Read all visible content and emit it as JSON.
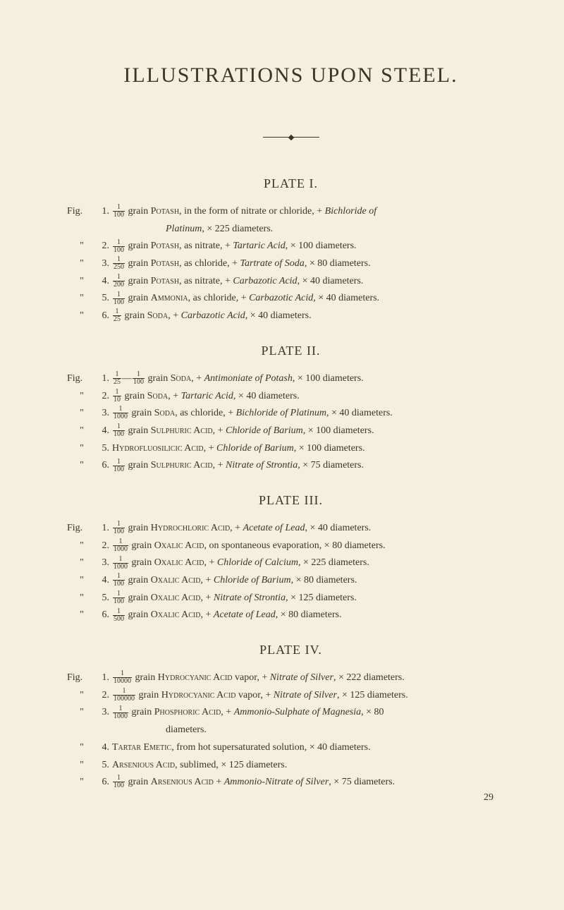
{
  "colors": {
    "background": "#f5efde",
    "text": "#3a3528"
  },
  "typography": {
    "title_fontsize": 30,
    "heading_fontsize": 18,
    "body_fontsize": 14,
    "font_family": "Times New Roman"
  },
  "title": "ILLUSTRATIONS UPON STEEL.",
  "plates": [
    {
      "heading": "PLATE I.",
      "entries": [
        {
          "label": "Fig.",
          "num": "1.",
          "frac_num": "1",
          "frac_den": "100",
          "body_a": "grain ",
          "sc": "Potash",
          "body_b": ", in the form of nitrate or chloride, + <i>Bichloride of</i>",
          "cont": "<i>Platinum</i>, × 225 diameters."
        },
        {
          "label": "\"",
          "num": "2.",
          "frac_num": "1",
          "frac_den": "100",
          "body_a": "grain ",
          "sc": "Potash",
          "body_b": ", as nitrate, + <i>Tartaric Acid</i>, × 100 diameters."
        },
        {
          "label": "\"",
          "num": "3.",
          "frac_num": "1",
          "frac_den": "250",
          "body_a": "grain ",
          "sc": "Potash",
          "body_b": ", as chloride, + <i>Tartrate of Soda</i>, × 80 diameters."
        },
        {
          "label": "\"",
          "num": "4.",
          "frac_num": "1",
          "frac_den": "200",
          "body_a": "grain ",
          "sc": "Potash",
          "body_b": ", as nitrate, + <i>Carbazotic Acid</i>, × 40 diameters."
        },
        {
          "label": "\"",
          "num": "5.",
          "frac_num": "1",
          "frac_den": "100",
          "body_a": "grain ",
          "sc": "Ammonia",
          "body_b": ", as chloride, + <i>Carbazotic Acid</i>, × 40 diameters."
        },
        {
          "label": "\"",
          "num": "6.",
          "frac_num": "1",
          "frac_den": "25",
          "body_a": "grain ",
          "sc": "Soda",
          "body_b": ", + <i>Carbazotic Acid</i>, × 40 diameters."
        }
      ]
    },
    {
      "heading": "PLATE II.",
      "entries": [
        {
          "label": "Fig.",
          "num": "1.",
          "frac_num": "1",
          "frac_den": "25",
          "dash": "—",
          "frac2_num": "1",
          "frac2_den": "100",
          "body_a": "grain ",
          "sc": "Soda",
          "body_b": ", + <i>Antimoniate of Potash</i>, × 100 diameters."
        },
        {
          "label": "\"",
          "num": "2.",
          "frac_num": "1",
          "frac_den": "10",
          "body_a": "grain ",
          "sc": "Soda",
          "body_b": ", + <i>Tartaric Acid</i>, × 40 diameters."
        },
        {
          "label": "\"",
          "num": "3.",
          "frac_num": "1",
          "frac_den": "1000",
          "body_a": "grain ",
          "sc": "Soda",
          "body_b": ", as chloride, + <i>Bichloride of Platinum</i>, × 40 diameters."
        },
        {
          "label": "\"",
          "num": "4.",
          "frac_num": "1",
          "frac_den": "100",
          "body_a": "grain ",
          "sc": "Sulphuric Acid",
          "body_b": ", + <i>Chloride of Barium</i>, × 100 diameters."
        },
        {
          "label": "\"",
          "num": "5.",
          "body_pre": "",
          "sc": "Hydrofluosilicic Acid",
          "body_b": ", + <i>Chloride of Barium</i>, × 100 diameters."
        },
        {
          "label": "\"",
          "num": "6.",
          "frac_num": "1",
          "frac_den": "100",
          "body_a": "grain ",
          "sc": "Sulphuric Acid",
          "body_b": ", + <i>Nitrate of Strontia</i>, × 75 diameters."
        }
      ]
    },
    {
      "heading": "PLATE III.",
      "entries": [
        {
          "label": "Fig.",
          "num": "1.",
          "frac_num": "1",
          "frac_den": "100",
          "body_a": "grain ",
          "sc": "Hydrochloric Acid",
          "body_b": ", + <i>Acetate of Lead</i>, × 40 diameters."
        },
        {
          "label": "\"",
          "num": "2.",
          "frac_num": "1",
          "frac_den": "1000",
          "body_a": "grain ",
          "sc": "Oxalic Acid",
          "body_b": ", on spontaneous evaporation, × 80 diameters."
        },
        {
          "label": "\"",
          "num": "3.",
          "frac_num": "1",
          "frac_den": "1000",
          "body_a": "grain ",
          "sc": "Oxalic Acid",
          "body_b": ", + <i>Chloride of Calcium</i>, × 225 diameters."
        },
        {
          "label": "\"",
          "num": "4.",
          "frac_num": "1",
          "frac_den": "100",
          "body_a": "grain ",
          "sc": "Oxalic Acid",
          "body_b": ", + <i>Chloride of Barium</i>, × 80 diameters."
        },
        {
          "label": "\"",
          "num": "5.",
          "frac_num": "1",
          "frac_den": "100",
          "body_a": "grain ",
          "sc": "Oxalic Acid",
          "body_b": ", + <i>Nitrate of Strontia</i>, × 125 diameters."
        },
        {
          "label": "\"",
          "num": "6.",
          "frac_num": "1",
          "frac_den": "500",
          "body_a": "grain ",
          "sc": "Oxalic Acid",
          "body_b": ", + <i>Acetate of Lead</i>, × 80 diameters."
        }
      ]
    },
    {
      "heading": "PLATE IV.",
      "entries": [
        {
          "label": "Fig.",
          "num": "1.",
          "frac_num": "1",
          "frac_den": "10000",
          "body_a": "grain ",
          "sc": "Hydrocyanic Acid",
          "body_b": " vapor, + <i>Nitrate of Silver</i>, × 222 diameters."
        },
        {
          "label": "\"",
          "num": "2.",
          "frac_num": "1",
          "frac_den": "100000",
          "body_a": "grain ",
          "sc": "Hydrocyanic Acid",
          "body_b": " vapor, + <i>Nitrate of Silver</i>, × 125 diameters."
        },
        {
          "label": "\"",
          "num": "3.",
          "frac_num": "1",
          "frac_den": "1000",
          "body_a": "grain ",
          "sc": "Phosphoric Acid",
          "body_b": ", + <i>Ammonio-Sulphate of Magnesia</i>, × 80",
          "cont2": "diameters."
        },
        {
          "label": "\"",
          "num": "4.",
          "body_pre": "",
          "sc": "Tartar Emetic",
          "body_b": ", from hot supersaturated solution, × 40 diameters."
        },
        {
          "label": "\"",
          "num": "5.",
          "body_pre": "",
          "sc": "Arsenious Acid",
          "body_b": ", sublimed, × 125 diameters."
        },
        {
          "label": "\"",
          "num": "6.",
          "frac_num": "1",
          "frac_den": "100",
          "body_a": "grain ",
          "sc": "Arsenious Acid",
          "body_b": " + <i>Ammonio-Nitrate of Silver</i>, × 75 diameters."
        }
      ],
      "tail": "29"
    }
  ]
}
